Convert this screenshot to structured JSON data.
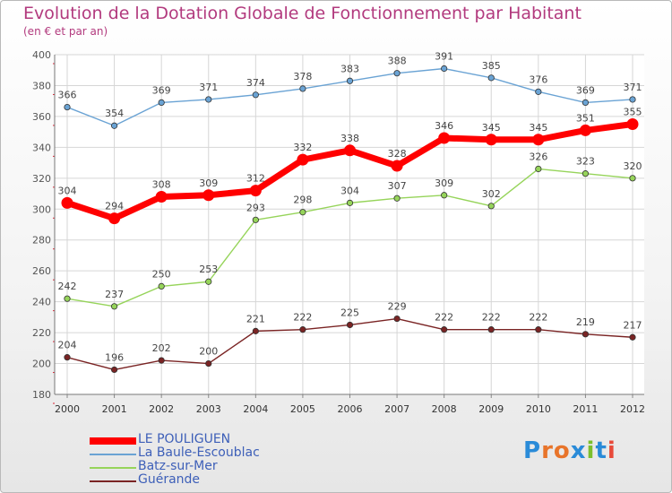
{
  "title": "Evolution de la Dotation Globale de Fonctionnement par Habitant",
  "subtitle": "(en € et par an)",
  "logo": {
    "text": "Proxiti",
    "colors": [
      "#2a8bd8",
      "#e8742a",
      "#e8742a",
      "#2a8bd8",
      "#7cbf2c",
      "#2a8bd8",
      "#e84a3a"
    ]
  },
  "chart_data": {
    "type": "line",
    "x": [
      "2000",
      "2001",
      "2002",
      "2003",
      "2004",
      "2005",
      "2006",
      "2007",
      "2008",
      "2009",
      "2010",
      "2011",
      "2012"
    ],
    "ylim": [
      180,
      400
    ],
    "yticks": [
      180,
      200,
      220,
      240,
      260,
      280,
      300,
      320,
      340,
      360,
      380,
      400
    ],
    "grid": true,
    "legend_position": "bottom-left",
    "series": [
      {
        "name": "LE POULIGUEN",
        "color": "#ff0000",
        "highlight": true,
        "values": [
          304,
          294,
          308,
          309,
          312,
          332,
          338,
          328,
          346,
          345,
          345,
          351,
          355
        ]
      },
      {
        "name": "La Baule-Escoublac",
        "color": "#6aa3d4",
        "highlight": false,
        "values": [
          366,
          354,
          369,
          371,
          374,
          378,
          383,
          388,
          391,
          385,
          376,
          369,
          371
        ]
      },
      {
        "name": "Batz-sur-Mer",
        "color": "#96d45a",
        "highlight": false,
        "values": [
          242,
          237,
          250,
          253,
          293,
          298,
          304,
          307,
          309,
          302,
          326,
          323,
          320
        ]
      },
      {
        "name": "Guérande",
        "color": "#7a2424",
        "highlight": false,
        "values": [
          204,
          196,
          202,
          200,
          221,
          222,
          225,
          229,
          222,
          222,
          222,
          219,
          217
        ]
      }
    ]
  }
}
